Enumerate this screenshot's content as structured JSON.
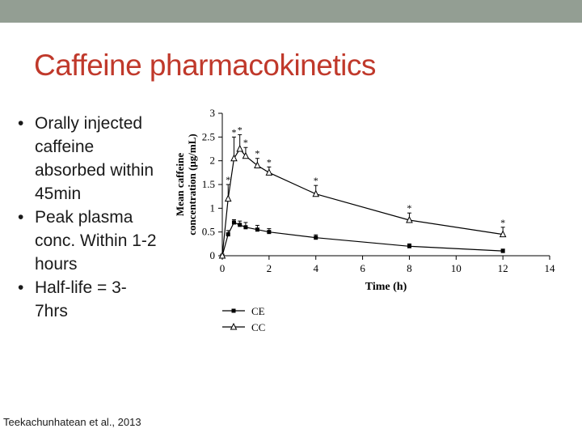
{
  "slide": {
    "title": "Caffeine pharmacokinetics",
    "bullets": [
      "Orally injected caffeine absorbed within 45min",
      "Peak plasma conc. Within 1-2 hours",
      "Half-life = 3-7hrs"
    ],
    "citation": "Teekachunhatean et al., 2013",
    "colors": {
      "topbar": "#939e93",
      "title": "#c0392b",
      "text": "#1a1a1a"
    }
  },
  "chart_data": {
    "type": "line",
    "xlabel": "Time (h)",
    "ylabel_line1": "Mean caffeine",
    "ylabel_line2": "concentration (μg/mL)",
    "xlim": [
      0,
      14
    ],
    "ylim": [
      0,
      3
    ],
    "x_ticks": [
      "0",
      "2",
      "4",
      "6",
      "8",
      "10",
      "12",
      "14"
    ],
    "y_ticks": [
      "0",
      "0.5",
      "1",
      "1.5",
      "2",
      "2.5",
      "3"
    ],
    "grid": false,
    "legend_position": "bottom-left",
    "significance_marker": "*",
    "series": [
      {
        "name": "CE",
        "marker": "filled-square",
        "x": [
          0,
          0.25,
          0.5,
          0.75,
          1,
          1.5,
          2,
          4,
          8,
          12
        ],
        "y": [
          0,
          0.45,
          0.7,
          0.65,
          0.6,
          0.55,
          0.5,
          0.38,
          0.2,
          0.1
        ],
        "err": [
          0,
          0.08,
          0.06,
          0.08,
          0.1,
          0.09,
          0.07,
          0.06,
          0.05,
          0.04
        ]
      },
      {
        "name": "CC",
        "marker": "open-triangle",
        "x": [
          0,
          0.25,
          0.5,
          0.75,
          1,
          1.5,
          2,
          4,
          8,
          12
        ],
        "y": [
          0,
          1.2,
          2.05,
          2.25,
          2.1,
          1.9,
          1.75,
          1.3,
          0.75,
          0.45
        ],
        "err": [
          0,
          0.3,
          0.45,
          0.3,
          0.18,
          0.15,
          0.12,
          0.18,
          0.15,
          0.15
        ],
        "significant": [
          false,
          true,
          true,
          true,
          true,
          true,
          true,
          true,
          true,
          true
        ]
      }
    ]
  }
}
